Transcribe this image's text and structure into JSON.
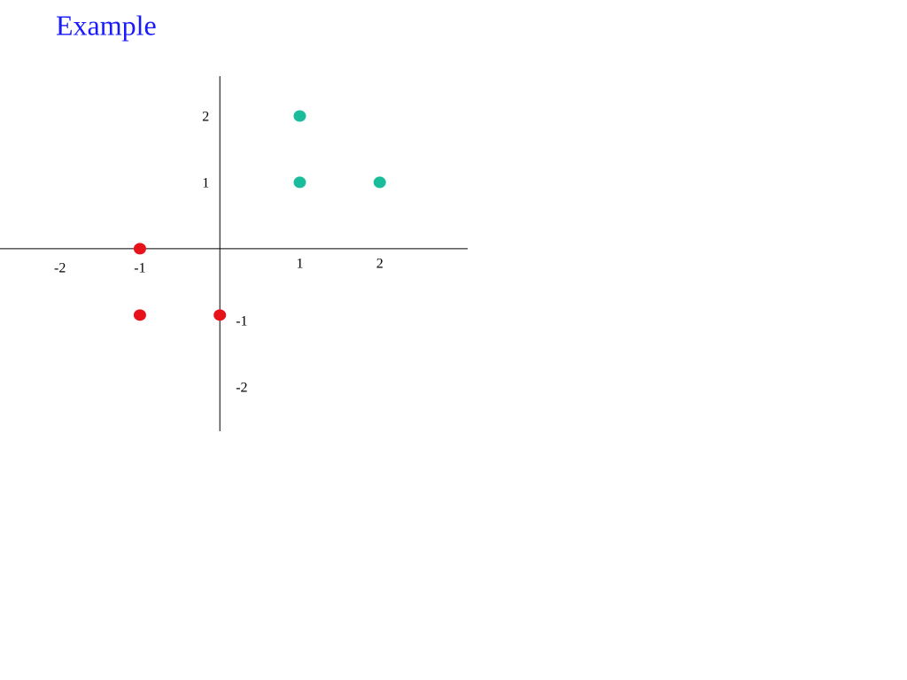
{
  "chart_data": {
    "type": "scatter",
    "title": "Example",
    "xlim": [
      -2.75,
      3.1
    ],
    "ylim": [
      -2.75,
      2.6
    ],
    "xticks": [
      -2,
      -1,
      1,
      2
    ],
    "yticks": [
      -2,
      -1,
      1,
      2
    ],
    "series": [
      {
        "color": "#1abc9c",
        "x": [
          1,
          1,
          2
        ],
        "values": [
          2,
          1,
          1
        ]
      },
      {
        "color": "#e8121a",
        "x": [
          -1,
          -1,
          0
        ],
        "values": [
          0,
          -1,
          -1
        ]
      }
    ]
  }
}
